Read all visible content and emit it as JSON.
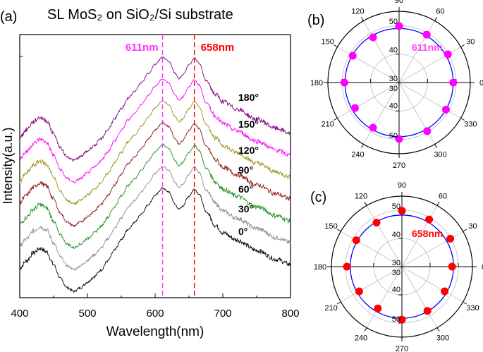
{
  "chart_data": [
    {
      "panel": "(a)",
      "type": "line",
      "title": "SL MoS₂ on SiO₂/Si substrate",
      "xlabel": "Wavelength(nm)",
      "ylabel": "Intensity(a.u.)",
      "xlim": [
        400,
        800
      ],
      "ylim": [
        0,
        100
      ],
      "xticks": [
        "400",
        "500",
        "600",
        "700",
        "800"
      ],
      "grid": false,
      "x": [
        400,
        410,
        420,
        430,
        440,
        450,
        460,
        470,
        480,
        490,
        500,
        510,
        520,
        530,
        540,
        550,
        560,
        570,
        580,
        590,
        600,
        611,
        620,
        630,
        635,
        640,
        650,
        658,
        665,
        675,
        690,
        700,
        720,
        750,
        780,
        800
      ],
      "series": [
        {
          "name": "0°",
          "color": "#000000",
          "values": [
            11.3,
            14,
            17,
            18.8,
            17.4,
            12.6,
            7.2,
            3.8,
            2.4,
            3.8,
            5.9,
            8,
            10.5,
            14,
            18,
            22,
            26,
            28.7,
            32,
            35.4,
            38.9,
            41.6,
            40.2,
            35.4,
            33.5,
            34.6,
            38.6,
            41.3,
            39.4,
            32.7,
            27.3,
            24.7,
            22,
            18,
            14.5,
            12.6
          ]
        },
        {
          "name": "30°",
          "color": "#8c8c8c",
          "values": [
            19.6,
            22.3,
            25.3,
            27.1,
            25.7,
            20.9,
            15.5,
            12.1,
            10.7,
            12.1,
            14.2,
            16.3,
            18.8,
            22.3,
            26.3,
            30.3,
            34.3,
            37,
            40.3,
            43.7,
            47.2,
            49.9,
            48.5,
            43.7,
            41.8,
            42.9,
            46.9,
            49.6,
            47.7,
            41,
            35.6,
            33,
            30.3,
            26.3,
            22.8,
            20.9
          ]
        },
        {
          "name": "60°",
          "color": "#1a8c1a",
          "values": [
            27.9,
            30.6,
            33.6,
            35.4,
            34,
            29.2,
            23.8,
            20.4,
            19,
            20.4,
            22.5,
            24.6,
            27.1,
            30.6,
            34.6,
            38.6,
            42.6,
            45.3,
            48.6,
            52,
            55.5,
            58.2,
            56.8,
            52,
            50.1,
            51.2,
            55.2,
            57.9,
            56,
            49.3,
            43.9,
            41.3,
            38.6,
            34.6,
            31.1,
            29.2
          ]
        },
        {
          "name": "90°",
          "color": "#8b1414",
          "values": [
            36.2,
            38.9,
            41.9,
            43.7,
            42.3,
            37.5,
            32.1,
            28.7,
            27.3,
            28.7,
            30.8,
            32.9,
            35.4,
            38.9,
            42.9,
            46.9,
            50.9,
            53.6,
            56.9,
            60.3,
            63.8,
            66.5,
            65.1,
            60.3,
            58.4,
            59.5,
            63.5,
            66.2,
            64.3,
            57.6,
            52.2,
            49.6,
            46.9,
            42.9,
            39.4,
            37.5
          ]
        },
        {
          "name": "120°",
          "color": "#9a951a",
          "values": [
            44.5,
            47.2,
            50.2,
            52,
            50.6,
            45.8,
            40.4,
            37,
            35.6,
            37,
            39.1,
            41.2,
            43.7,
            47.2,
            51.2,
            55.2,
            59.2,
            61.9,
            65.2,
            68.6,
            72.1,
            74.8,
            73.4,
            68.6,
            66.7,
            67.8,
            71.8,
            74.5,
            72.6,
            65.9,
            60.5,
            57.9,
            55.2,
            51.2,
            47.7,
            45.8
          ]
        },
        {
          "name": "150°",
          "color": "#ff00ff",
          "values": [
            52.8,
            55.5,
            58.5,
            60.3,
            58.9,
            54.1,
            48.7,
            45.3,
            43.9,
            45.3,
            47.4,
            49.5,
            52,
            55.5,
            59.5,
            63.5,
            67.5,
            70.2,
            73.5,
            76.9,
            80.4,
            83.1,
            81.7,
            76.9,
            75,
            76.1,
            80.1,
            82.8,
            80.9,
            74.2,
            68.8,
            66.2,
            63.5,
            59.5,
            56,
            54.1
          ]
        },
        {
          "name": "180°",
          "color": "#800080",
          "values": [
            61.1,
            63.8,
            66.8,
            68.6,
            67.2,
            62.4,
            57,
            53.6,
            52.2,
            53.6,
            55.7,
            57.8,
            60.3,
            63.8,
            67.8,
            71.8,
            75.8,
            78.5,
            81.8,
            85.2,
            88.7,
            91.4,
            90,
            85.2,
            83.3,
            84.4,
            88.4,
            91.1,
            89.2,
            82.5,
            77.1,
            74.5,
            71.8,
            67.8,
            64.3,
            62.4
          ]
        }
      ],
      "annotations": [
        {
          "text": "611nm",
          "x": 611,
          "color": "#ff33ff",
          "style": "dashed vertical line"
        },
        {
          "text": "658nm",
          "x": 658,
          "color": "#ff0000",
          "style": "dashed vertical line"
        }
      ]
    },
    {
      "panel": "(b)",
      "type": "scatter",
      "projection": "polar",
      "label": "611nm",
      "angles": [
        0,
        30,
        60,
        90,
        120,
        150,
        180,
        210,
        240,
        270,
        300,
        330
      ],
      "angle_labels": [
        "0",
        "30",
        "60",
        "90",
        "120",
        "150",
        "180",
        "210",
        "240",
        "270",
        "300",
        "330"
      ],
      "radial_ticks": [
        "30",
        "40",
        "50"
      ],
      "rlim": [
        30,
        55
      ],
      "values": [
        49,
        49.8,
        49.4,
        49.8,
        48.3,
        48.8,
        49.2,
        47.9,
        48.3,
        49.8,
        49.7,
        49
      ],
      "fit_radius": 49,
      "marker_color": "#ff00ff",
      "label_color": "#ff44ff",
      "fit_color": "#0000ff"
    },
    {
      "panel": "(c)",
      "type": "scatter",
      "projection": "polar",
      "label": "658nm",
      "angles": [
        0,
        30,
        60,
        90,
        120,
        150,
        180,
        210,
        240,
        270,
        300,
        330
      ],
      "angle_labels": [
        "0",
        "30",
        "60",
        "90",
        "120",
        "150",
        "180",
        "210",
        "240",
        "270",
        "300",
        "330"
      ],
      "radial_ticks": [
        "30",
        "40",
        "50"
      ],
      "rlim": [
        30,
        55
      ],
      "values": [
        47.8,
        49.8,
        49.3,
        49.8,
        48,
        48.7,
        49.5,
        47.5,
        47.1,
        48.8,
        48.1,
        47.5
      ],
      "fit_radius": 48.3,
      "marker_color": "#ff0000",
      "label_color": "#ff0000",
      "fit_color": "#0000ff"
    }
  ]
}
